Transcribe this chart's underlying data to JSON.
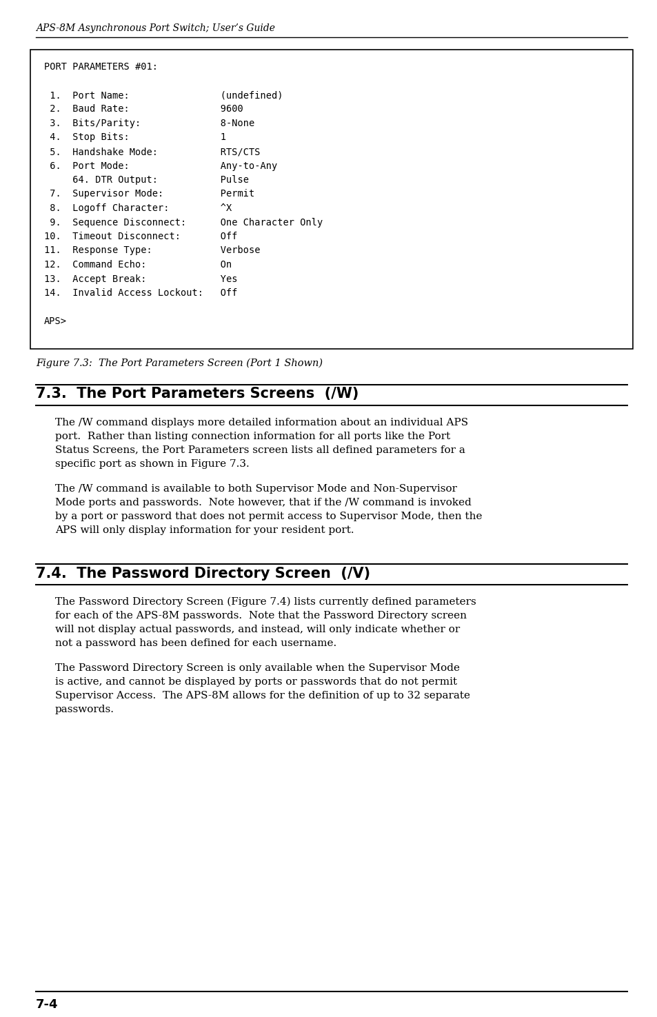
{
  "header_text": "APS-8M Asynchronous Port Switch; User’s Guide",
  "terminal_lines": [
    "PORT PARAMETERS #01:",
    "",
    " 1.  Port Name:                (undefined)",
    " 2.  Baud Rate:                9600",
    " 3.  Bits/Parity:              8-None",
    " 4.  Stop Bits:                1",
    " 5.  Handshake Mode:           RTS/CTS",
    " 6.  Port Mode:                Any-to-Any",
    "     64. DTR Output:           Pulse",
    " 7.  Supervisor Mode:          Permit",
    " 8.  Logoff Character:         ^X",
    " 9.  Sequence Disconnect:      One Character Only",
    "10.  Timeout Disconnect:       Off",
    "11.  Response Type:            Verbose",
    "12.  Command Echo:             On",
    "13.  Accept Break:             Yes",
    "14.  Invalid Access Lockout:   Off",
    "",
    "APS>"
  ],
  "figure_caption": "Figure 7.3:  The Port Parameters Screen (Port 1 Shown)",
  "section_73_title": "7.3.  The Port Parameters Screens  (/W)",
  "para73_1": [
    "The /W command displays more detailed information about an individual APS",
    "port.  Rather than listing connection information for all ports like the Port",
    "Status Screens, the Port Parameters screen lists all defined parameters for a",
    "specific port as shown in Figure 7.3."
  ],
  "para73_2": [
    "The /W command is available to both Supervisor Mode and Non-Supervisor",
    "Mode ports and passwords.  Note however, that if the /W command is invoked",
    "by a port or password that does not permit access to Supervisor Mode, then the",
    "APS will only display information for your resident port."
  ],
  "section_74_title": "7.4.  The Password Directory Screen  (/V)",
  "para74_1": [
    "The Password Directory Screen (Figure 7.4) lists currently defined parameters",
    "for each of the APS-8M passwords.  Note that the Password Directory screen",
    "will not display actual passwords, and instead, will only indicate whether or",
    "not a password has been defined for each username."
  ],
  "para74_2": [
    "The Password Directory Screen is only available when the Supervisor Mode",
    "is active, and cannot be displayed by ports or passwords that do not permit",
    "Supervisor Access.  The APS-8M allows for the definition of up to 32 separate",
    "passwords."
  ],
  "footer_text": "7-4",
  "bg_color": "#ffffff",
  "text_color": "#000000"
}
